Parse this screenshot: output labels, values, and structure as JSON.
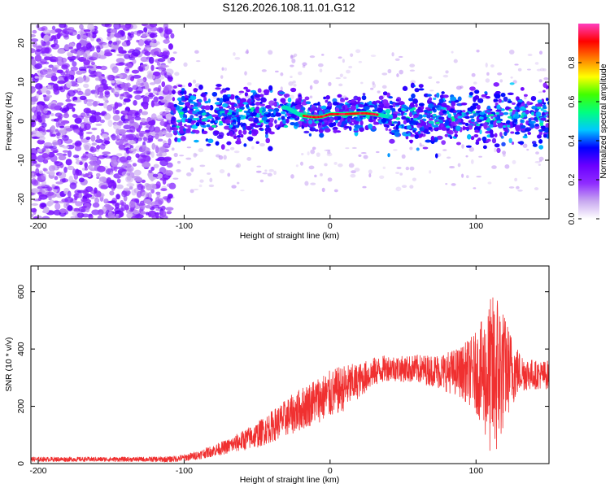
{
  "title": "S126.2026.108.11.01.G12",
  "chart_data": [
    {
      "type": "heatmap",
      "title": "S126.2026.108.11.01.G12",
      "xlabel": "Height of straight line (km)",
      "ylabel": "Frequency (Hz)",
      "xlim": [
        -205,
        150
      ],
      "ylim": [
        -25,
        25
      ],
      "x_ticks": [
        -200,
        -100,
        0,
        100
      ],
      "x_tick_labels": [
        "-200",
        "-100",
        "0",
        "100"
      ],
      "y_ticks": [
        20,
        10,
        0,
        -10,
        -20
      ],
      "y_tick_labels": [
        "20",
        "10",
        "0",
        "-10",
        "-20"
      ],
      "colorbar": {
        "label": "Normalized spectral amplitude",
        "range": [
          0,
          1
        ],
        "ticks": [
          0.0,
          0.2,
          0.4,
          0.6,
          0.8
        ],
        "tick_labels": [
          "0.0",
          "0.2",
          "0.4",
          "0.6",
          "0.8"
        ],
        "colors": [
          "#ffffff",
          "#c8a8f0",
          "#8f2cff",
          "#6a00ff",
          "#0000ff",
          "#00c8ff",
          "#00ff80",
          "#40ff00",
          "#ffff00",
          "#ff8000",
          "#ff0000",
          "#ff3ec0"
        ]
      },
      "signal_trace": {
        "x": [
          -30,
          -25,
          -20,
          -15,
          -10,
          -5,
          0,
          5,
          10,
          15,
          20,
          25,
          30,
          35,
          40
        ],
        "y": [
          3.5,
          2.5,
          1.5,
          1.2,
          1.0,
          1.2,
          1.8,
          1.8,
          1.8,
          1.9,
          2.0,
          2.0,
          1.8,
          1.5,
          1.2
        ]
      }
    },
    {
      "type": "line",
      "xlabel": "Height of straight line (km)",
      "ylabel": "SNR (10 * v/v)",
      "xlim": [
        -205,
        150
      ],
      "ylim": [
        0,
        690
      ],
      "x_ticks": [
        -200,
        -100,
        0,
        100
      ],
      "x_tick_labels": [
        "-200",
        "-100",
        "0",
        "100"
      ],
      "y_ticks": [
        0,
        200,
        400,
        600
      ],
      "y_tick_labels": [
        "0",
        "200",
        "400",
        "600"
      ],
      "series": [
        {
          "name": "SNR",
          "color": "#f03030",
          "x": [
            -205,
            -190,
            -170,
            -150,
            -130,
            -110,
            -100,
            -90,
            -80,
            -70,
            -60,
            -50,
            -40,
            -30,
            -20,
            -10,
            0,
            10,
            20,
            30,
            40,
            50,
            60,
            70,
            80,
            90,
            100,
            105,
            110,
            115,
            120,
            130,
            140,
            150
          ],
          "y": [
            15,
            15,
            15,
            15,
            15,
            15,
            20,
            30,
            45,
            60,
            80,
            100,
            130,
            160,
            190,
            220,
            240,
            265,
            290,
            320,
            335,
            330,
            330,
            325,
            320,
            320,
            320,
            310,
            300,
            320,
            330,
            320,
            310,
            310
          ],
          "spread": [
            8,
            8,
            8,
            8,
            8,
            10,
            12,
            15,
            20,
            25,
            35,
            45,
            55,
            65,
            75,
            80,
            85,
            80,
            60,
            50,
            45,
            45,
            50,
            55,
            70,
            90,
            140,
            200,
            280,
            300,
            180,
            70,
            50,
            50
          ]
        }
      ]
    }
  ]
}
